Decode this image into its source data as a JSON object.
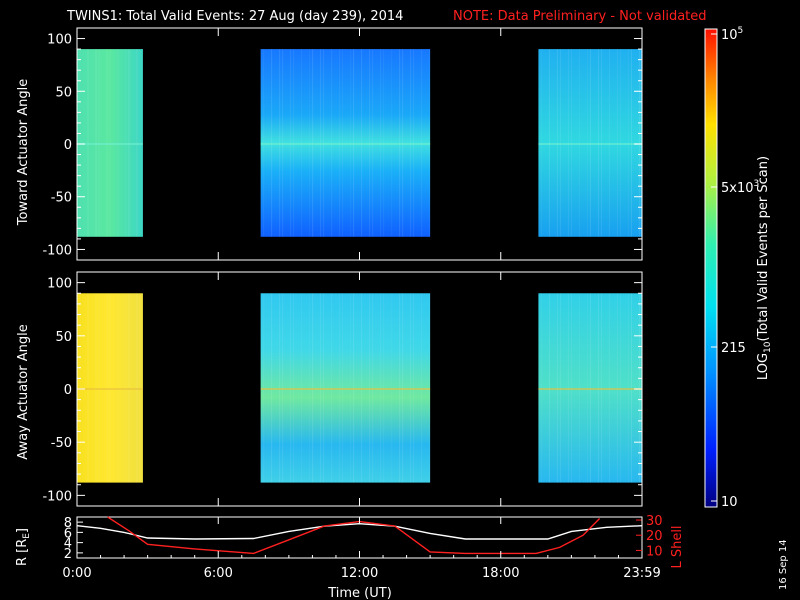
{
  "header": {
    "title": "TWINS1: Total Valid Events: 27 Aug (day 239), 2014",
    "note": "NOTE: Data Preliminary - Not validated"
  },
  "colors": {
    "note": "#ff2020",
    "axes": "#ffffff",
    "r_line": "#ffffff",
    "lshell_line": "#ff2020"
  },
  "chart_data": [
    {
      "type": "heatmap",
      "panel": "toward",
      "ylabel": "Toward Actuator Angle",
      "ylim": [
        -110,
        110
      ],
      "yticks": [
        "100",
        "50",
        "0",
        "-50",
        "-100"
      ],
      "xlim_hours": [
        0,
        24
      ],
      "data_blocks": [
        {
          "t_start": 0.0,
          "t_end": 2.8,
          "angle_range": [
            -88,
            90
          ],
          "level": "cyan-green"
        },
        {
          "t_start": 7.8,
          "t_end": 15.0,
          "angle_range": [
            -88,
            90
          ],
          "level": "blue-cyan"
        },
        {
          "t_start": 19.6,
          "t_end": 24.0,
          "angle_range": [
            -88,
            90
          ],
          "level": "cyan"
        }
      ]
    },
    {
      "type": "heatmap",
      "panel": "away",
      "ylabel": "Away Actuator Angle",
      "ylim": [
        -110,
        110
      ],
      "yticks": [
        "100",
        "50",
        "0",
        "-50",
        "-100"
      ],
      "xlim_hours": [
        0,
        24
      ],
      "data_blocks": [
        {
          "t_start": 0.0,
          "t_end": 2.8,
          "angle_range": [
            -88,
            90
          ],
          "level": "yellow"
        },
        {
          "t_start": 7.8,
          "t_end": 15.0,
          "angle_range": [
            -88,
            90
          ],
          "level": "cyan"
        },
        {
          "t_start": 19.6,
          "t_end": 24.0,
          "angle_range": [
            -88,
            90
          ],
          "level": "cyan"
        }
      ]
    },
    {
      "type": "line",
      "panel": "orbit",
      "ylabel": "R [R",
      "ylabel_sub": "E",
      "ylabel_end": "]",
      "yticks_left": [
        "8",
        "6",
        "4",
        "2"
      ],
      "ylabel_right": "L Shell",
      "yticks_right": [
        "30",
        "20",
        "10"
      ],
      "xlabel": "Time (UT)",
      "xticks": [
        "0:00",
        "6:00",
        "12:00",
        "18:00",
        "23:59"
      ],
      "series": [
        {
          "axis": "left",
          "x": [
            0,
            1,
            2,
            3,
            5,
            7.5,
            9,
            10.5,
            12,
            13.5,
            15,
            16.5,
            18,
            20,
            21,
            22.5,
            24
          ],
          "y": [
            7.3,
            6.8,
            6.0,
            4.9,
            4.7,
            4.8,
            6.2,
            7.2,
            7.7,
            7.2,
            5.8,
            4.7,
            4.7,
            4.7,
            6.2,
            7.0,
            7.3
          ]
        },
        {
          "axis": "right",
          "x": [
            1.3,
            2.2,
            3,
            5,
            7.5,
            9,
            10.5,
            12,
            13.5,
            15,
            16.5,
            19.5,
            20.5,
            21.5,
            22.2
          ],
          "y": [
            33,
            23,
            14,
            11,
            8,
            17,
            26,
            29,
            26,
            9,
            8,
            8,
            12,
            20,
            31
          ]
        }
      ]
    }
  ],
  "colorbar": {
    "ticks": [
      "10",
      "215",
      "5x10",
      "10"
    ],
    "tick_exponents": [
      "",
      "",
      "3",
      "5"
    ],
    "label": "LOG",
    "label_sub": "10",
    "label_rest": "(Total Valid Events per Scan)"
  },
  "date_stamp": "16 Sep 14"
}
